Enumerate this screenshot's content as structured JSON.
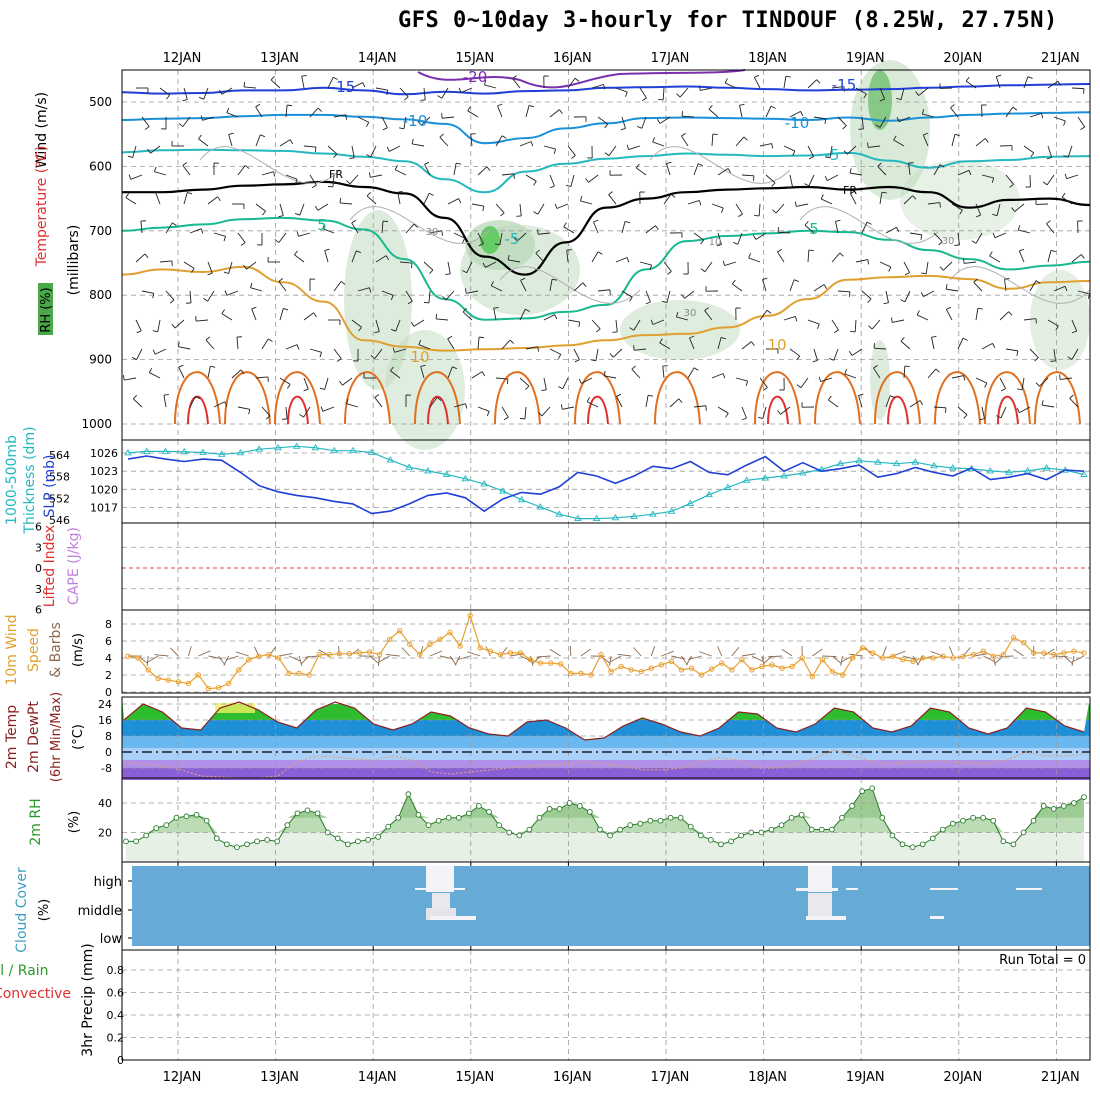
{
  "title": "GFS 0~10day 3-hourly for TINDOUF (8.25W, 27.75N)",
  "colors": {
    "slp": "#1f3fd6",
    "thickness": "#25b8c0",
    "wind10m": "#e8a030",
    "barb": "#8b6a50",
    "rh2m_line": "#2a7a2a",
    "rh2m_fill": "#a9d3a0",
    "cloud_bg": "#66aad6",
    "cape_zero": "#e04040",
    "grid": "#9a9a9a"
  },
  "chart_data": [
    {
      "panel": "upper_air",
      "type": "contour",
      "ylabel_parts": [
        "RH (%)",
        "Temperature (°C)",
        "Wind (m/s)"
      ],
      "ylabel_units": "(millibars)",
      "y_axis_reversed": true,
      "ylim": [
        1000,
        470
      ],
      "y_ticks": [
        500,
        600,
        700,
        800,
        900,
        1000
      ],
      "x_ticks": [
        "12JAN",
        "13JAN",
        "14JAN",
        "15JAN",
        "16JAN",
        "17JAN",
        "18JAN",
        "19JAN",
        "20JAN",
        "21JAN"
      ],
      "temperature_contour_labels": [
        "-20",
        "-15",
        "-10",
        "-5",
        "FR",
        "5",
        "10",
        "-15",
        "-10",
        "-5",
        "FR",
        "5",
        "10"
      ],
      "rh_contour_labels": [
        "30",
        "30",
        "30",
        "10"
      ],
      "temperature_contours": [
        {
          "label": "-15",
          "color": "#1f3fd6",
          "level_mb": [
            485,
            487,
            486,
            482,
            482,
            478,
            482,
            488,
            484,
            487,
            483,
            482,
            478,
            477,
            476,
            478,
            480,
            482,
            481,
            480,
            478,
            476,
            474,
            473,
            472
          ]
        },
        {
          "label": "-10",
          "color": "#1a90d8",
          "level_mb": [
            528,
            526,
            525,
            522,
            520,
            520,
            523,
            527,
            534,
            564,
            556,
            541,
            533,
            525,
            524,
            525,
            526,
            528,
            524,
            529,
            524,
            520,
            518,
            517,
            516
          ]
        },
        {
          "label": "-5",
          "color": "#25b8c0",
          "level_mb": [
            578,
            575,
            574,
            575,
            576,
            580,
            585,
            592,
            620,
            640,
            608,
            596,
            588,
            584,
            580,
            582,
            584,
            583,
            579,
            591,
            602,
            592,
            590,
            585,
            584
          ]
        },
        {
          "label": "FR",
          "color": "#000000",
          "level_mb": [
            640,
            640,
            636,
            630,
            628,
            624,
            632,
            642,
            680,
            740,
            768,
            718,
            664,
            650,
            640,
            636,
            634,
            632,
            636,
            632,
            640,
            664,
            652,
            650,
            660
          ]
        },
        {
          "label": "5",
          "color": "#18b890",
          "level_mb": [
            700,
            695,
            690,
            682,
            680,
            684,
            698,
            744,
            806,
            838,
            836,
            826,
            815,
            760,
            716,
            708,
            704,
            700,
            702,
            714,
            730,
            744,
            760,
            754,
            748
          ]
        },
        {
          "label": "10",
          "color": "#e0a030",
          "level_mb": [
            768,
            760,
            764,
            756,
            780,
            810,
            870,
            880,
            886,
            884,
            882,
            878,
            870,
            862,
            860,
            850,
            832,
            806,
            776,
            772,
            770,
            775,
            790,
            780,
            778
          ]
        }
      ]
    },
    {
      "panel": "slp_thickness",
      "type": "line",
      "ylabel_left": "1000-500mb Thickness (dm)",
      "ylabel_right": "SLP (mb)",
      "thickness_ticks": [
        546,
        552,
        558,
        564
      ],
      "slp_ticks": [
        1017,
        1020,
        1023,
        1026
      ],
      "series": [
        {
          "name": "SLP (mb)",
          "values": [
            1025.0,
            1025.5,
            1025.0,
            1024.6,
            1025.0,
            1024.8,
            1022.8,
            1020.6,
            1019.6,
            1019.0,
            1018.6,
            1018.0,
            1017.6,
            1016.0,
            1016.4,
            1017.6,
            1019.0,
            1019.4,
            1018.6,
            1016.4,
            1018.4,
            1019.5,
            1019.2,
            1020.4,
            1022.8,
            1022.2,
            1021.0,
            1022.2,
            1023.8,
            1023.4,
            1024.6,
            1022.8,
            1022.4,
            1024.0,
            1025.4,
            1023.0,
            1024.4,
            1023.0,
            1023.4,
            1024.0,
            1022.0,
            1022.6,
            1023.6,
            1022.8,
            1022.2,
            1023.5,
            1021.6,
            1022.0,
            1022.6,
            1021.6,
            1023.2,
            1023.0
          ]
        },
        {
          "name": "1000-500mb Thickness (dm)",
          "values": [
            564.6,
            565.0,
            565.0,
            564.9,
            564.7,
            564.2,
            564.6,
            565.6,
            566.0,
            566.4,
            566.0,
            565.2,
            565.2,
            564.7,
            562.6,
            560.6,
            559.6,
            558.6,
            557.4,
            556.0,
            554.0,
            551.6,
            549.6,
            547.6,
            546.4,
            546.4,
            546.6,
            547.0,
            547.6,
            548.4,
            550.6,
            553.0,
            555.0,
            557.0,
            557.6,
            558.2,
            559.0,
            560.0,
            561.6,
            562.4,
            562.0,
            561.6,
            562.0,
            561.0,
            560.4,
            560.2,
            559.6,
            559.2,
            559.6,
            560.4,
            559.8,
            558.6
          ]
        }
      ]
    },
    {
      "panel": "cape_li",
      "type": "line",
      "ylabel_left": "Lifted Index",
      "ylabel_right": "CAPE (J/kg)",
      "li_ticks": [
        -6,
        -3,
        0,
        3,
        6
      ],
      "li_tick_labels": [
        "6",
        "3",
        "0",
        "3",
        "6"
      ],
      "series": [
        {
          "name": "Lifted Index",
          "values": [
            0,
            0,
            0,
            0,
            0,
            0,
            0,
            0,
            0,
            0,
            0
          ]
        }
      ]
    },
    {
      "panel": "wind10m",
      "type": "line",
      "ylabel": "10m Wind Speed & Barbs (m/s)",
      "ylim": [
        0,
        9
      ],
      "y_ticks": [
        0,
        2,
        4,
        6,
        8
      ],
      "series": [
        {
          "name": "10m Wind Speed",
          "values": [
            4.2,
            4.0,
            2.6,
            1.6,
            1.4,
            1.2,
            1.0,
            2.0,
            0.4,
            0.5,
            1.0,
            2.6,
            3.8,
            4.2,
            4.4,
            4.0,
            2.2,
            2.2,
            2.0,
            4.4,
            4.4,
            4.5,
            4.5,
            4.6,
            4.7,
            4.4,
            6.2,
            7.2,
            5.6,
            4.4,
            5.6,
            6.2,
            7.0,
            5.4,
            9.0,
            5.2,
            4.8,
            4.4,
            4.6,
            4.6,
            3.8,
            3.4,
            3.4,
            3.3,
            2.2,
            2.2,
            2.0,
            4.4,
            2.4,
            3.0,
            2.6,
            2.4,
            2.8,
            3.2,
            3.6,
            2.6,
            2.8,
            2.0,
            2.7,
            3.4,
            2.6,
            3.8,
            2.6,
            3.0,
            3.2,
            2.8,
            3.0,
            4.0,
            1.8,
            3.8,
            2.4,
            2.0,
            4.0,
            5.2,
            4.6,
            4.0,
            4.2,
            3.8,
            3.6,
            4.0,
            4.0,
            4.2,
            4.0,
            4.2,
            4.4,
            4.8,
            4.2,
            4.4,
            6.4,
            5.8,
            4.6,
            4.6,
            4.4,
            4.6,
            4.8,
            4.6
          ]
        }
      ]
    },
    {
      "panel": "temp_dewpt",
      "type": "area",
      "ylabel": "2m Temp 2m DewPt (6hr Min/Max) (°C)",
      "ylim": [
        -14,
        25
      ],
      "y_ticks": [
        -8,
        0,
        8,
        16,
        24
      ],
      "series": [
        {
          "name": "2m Temp",
          "values": [
            16.0,
            24.0,
            20.0,
            12.0,
            11.0,
            22.0,
            25.0,
            21.0,
            15.0,
            12.0,
            21.0,
            25.0,
            22.0,
            14.0,
            11.0,
            14.0,
            20.0,
            18.0,
            12.0,
            9.0,
            8.0,
            15.0,
            16.0,
            12.0,
            6.0,
            7.0,
            13.0,
            17.0,
            14.0,
            10.0,
            8.0,
            12.0,
            20.0,
            19.0,
            12.0,
            10.0,
            14.0,
            22.0,
            20.0,
            12.0,
            10.0,
            13.0,
            22.0,
            20.0,
            12.0,
            9.0,
            12.0,
            22.0,
            20.0,
            13.0,
            10.0
          ]
        },
        {
          "name": "2m DewPt",
          "values": [
            -5.0,
            -6.0,
            -7.0,
            -9.0,
            -12.0,
            -12.5,
            -13.0,
            -13.0,
            -12.0,
            -5.0,
            -2.0,
            -2.5,
            -3.5,
            -4.0,
            -2.0,
            -4.0,
            -10.0,
            -11.0,
            -10.0,
            -9.0,
            -8.0,
            -7.0,
            -6.5,
            -6.0,
            -5.0,
            -6.0,
            -7.0,
            -9.0,
            -9.0,
            -8.0,
            -5.0,
            -3.0,
            -4.0,
            -8.0,
            -8.0,
            -6.0,
            -3.0,
            1.0,
            -2.0,
            -5.0,
            -6.0,
            -5.0,
            -4.5,
            -5.0,
            -5.5,
            -6.0,
            -4.0,
            0.0,
            -2.0,
            -2.0,
            -1.0
          ]
        }
      ]
    },
    {
      "panel": "rh2m",
      "type": "area",
      "ylabel": "2m RH (%)",
      "ylim": [
        0,
        55
      ],
      "y_ticks": [
        20,
        40
      ],
      "series": [
        {
          "name": "2m RH",
          "values": [
            14,
            14,
            18,
            23,
            25,
            30,
            31,
            32,
            28,
            16,
            12,
            10,
            12,
            14,
            15,
            14,
            25,
            33,
            35,
            33,
            20,
            16,
            12,
            14,
            15,
            17,
            24,
            30,
            46,
            32,
            25,
            28,
            30,
            30,
            33,
            38,
            34,
            25,
            20,
            18,
            22,
            30,
            36,
            36,
            40,
            38,
            34,
            22,
            18,
            22,
            25,
            26,
            28,
            28,
            30,
            30,
            24,
            18,
            15,
            12,
            14,
            18,
            20,
            20,
            22,
            25,
            30,
            32,
            22,
            22,
            22,
            30,
            38,
            48,
            50,
            30,
            18,
            12,
            10,
            12,
            16,
            22,
            26,
            28,
            30,
            30,
            28,
            14,
            12,
            20,
            28,
            38,
            36,
            38,
            40,
            44
          ]
        }
      ]
    },
    {
      "panel": "cloud_cover",
      "type": "heatmap",
      "ylabel": "Cloud Cover (%)",
      "y_levels": [
        "high",
        "middle",
        "low"
      ],
      "text_color_legend": "blue = clear; white = cloud"
    },
    {
      "panel": "precip",
      "type": "bar",
      "ylabel": "3hr Precip (mm)",
      "legend_left": [
        "Total / Rain",
        "Convective"
      ],
      "annotation": "Run Total = 0",
      "ylim": [
        0,
        0.9
      ],
      "y_ticks": [
        0,
        0.2,
        0.4,
        0.6,
        0.8
      ],
      "values": [
        0,
        0,
        0,
        0,
        0,
        0,
        0,
        0,
        0,
        0
      ]
    }
  ],
  "x_axis": {
    "ticks": [
      "12JAN",
      "13JAN",
      "14JAN",
      "15JAN",
      "16JAN",
      "17JAN",
      "18JAN",
      "19JAN",
      "20JAN",
      "21JAN"
    ]
  }
}
